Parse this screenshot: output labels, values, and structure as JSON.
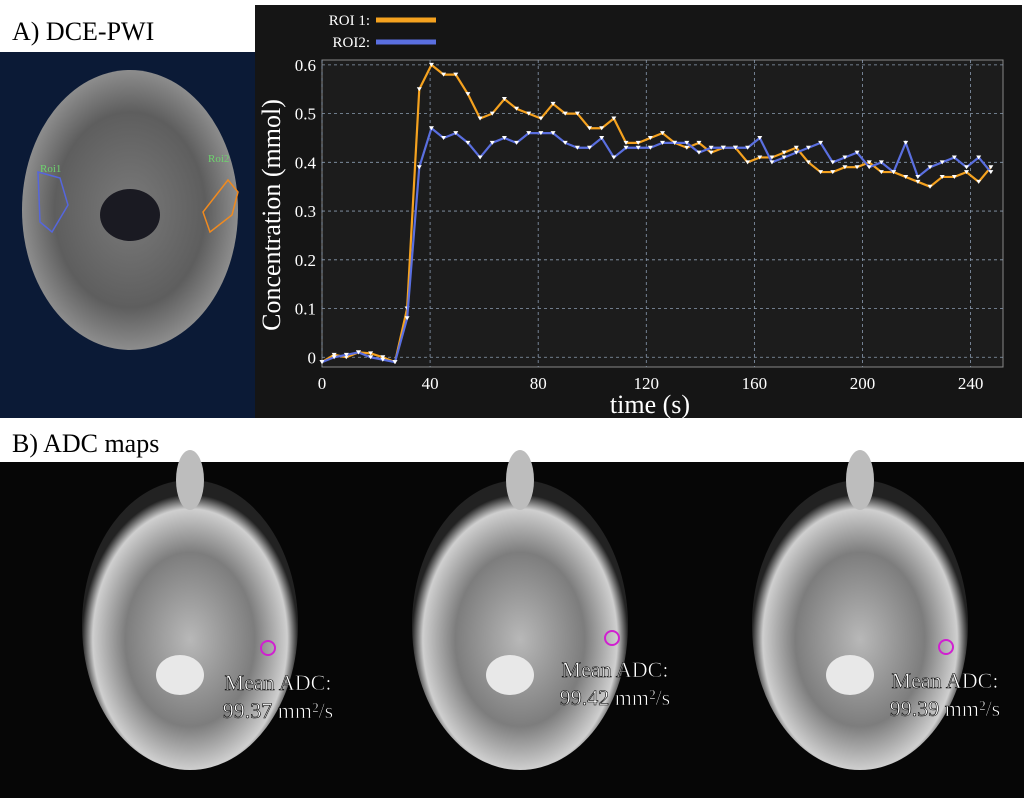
{
  "panel_a": {
    "label": "A) DCE-PWI",
    "roi_labels": [
      "Roi1",
      "Roi2"
    ]
  },
  "chart_data": {
    "type": "line",
    "x_label": "time (s)",
    "y_label": "Concentration (mmol)",
    "x": [
      0,
      4.5,
      9,
      13.5,
      18,
      22.5,
      27,
      31.5,
      36,
      40.5,
      45,
      49.5,
      54,
      58.5,
      63,
      67.5,
      72,
      76.5,
      81,
      85.5,
      90,
      94.5,
      99,
      103.5,
      108,
      112.5,
      117,
      121.5,
      126,
      130.5,
      135,
      139.5,
      144,
      148.5,
      153,
      157.5,
      162,
      166.5,
      171,
      175.5,
      180,
      184.5,
      189,
      193.5,
      198,
      202.5,
      207,
      211.5,
      216,
      220.5,
      225,
      229.5,
      234,
      238.5,
      243,
      247.5
    ],
    "series": [
      {
        "name": "ROI 1:",
        "color": "#f5a21f",
        "values": [
          -0.01,
          0.005,
          0,
          0.01,
          0.008,
          0,
          -0.01,
          0.1,
          0.55,
          0.6,
          0.58,
          0.58,
          0.54,
          0.49,
          0.5,
          0.53,
          0.51,
          0.5,
          0.49,
          0.52,
          0.5,
          0.5,
          0.47,
          0.47,
          0.49,
          0.44,
          0.44,
          0.45,
          0.46,
          0.44,
          0.43,
          0.44,
          0.42,
          0.43,
          0.43,
          0.4,
          0.41,
          0.41,
          0.42,
          0.43,
          0.4,
          0.38,
          0.38,
          0.39,
          0.39,
          0.4,
          0.38,
          0.38,
          0.37,
          0.36,
          0.35,
          0.37,
          0.37,
          0.38,
          0.36,
          0.39
        ]
      },
      {
        "name": "ROI2:",
        "color": "#5a6fe0",
        "values": [
          -0.01,
          0.0,
          0.005,
          0.01,
          0.0,
          -0.005,
          -0.01,
          0.08,
          0.39,
          0.47,
          0.45,
          0.46,
          0.44,
          0.41,
          0.44,
          0.45,
          0.44,
          0.46,
          0.46,
          0.46,
          0.44,
          0.43,
          0.43,
          0.45,
          0.41,
          0.43,
          0.43,
          0.43,
          0.44,
          0.44,
          0.44,
          0.42,
          0.43,
          0.43,
          0.43,
          0.43,
          0.45,
          0.4,
          0.41,
          0.42,
          0.43,
          0.44,
          0.4,
          0.41,
          0.42,
          0.39,
          0.4,
          0.38,
          0.44,
          0.37,
          0.39,
          0.4,
          0.41,
          0.39,
          0.41,
          0.38
        ]
      }
    ],
    "xlim": [
      0,
      252
    ],
    "xticks": [
      0,
      40,
      80,
      120,
      160,
      200,
      240
    ],
    "ylim": [
      -0.02,
      0.61
    ],
    "yticks": [
      0,
      0.1,
      0.2,
      0.3,
      0.4,
      0.5,
      0.6
    ],
    "grid": true,
    "legend": "top-left"
  },
  "panel_b": {
    "label": "B) ADC maps",
    "maps": [
      {
        "caption": "Mean ADC:",
        "value": "99.37 mm²/s"
      },
      {
        "caption": "Mean ADC:",
        "value": "99.42 mm²/s"
      },
      {
        "caption": "Mean ADC:",
        "value": "99.39 mm²/s"
      }
    ]
  }
}
